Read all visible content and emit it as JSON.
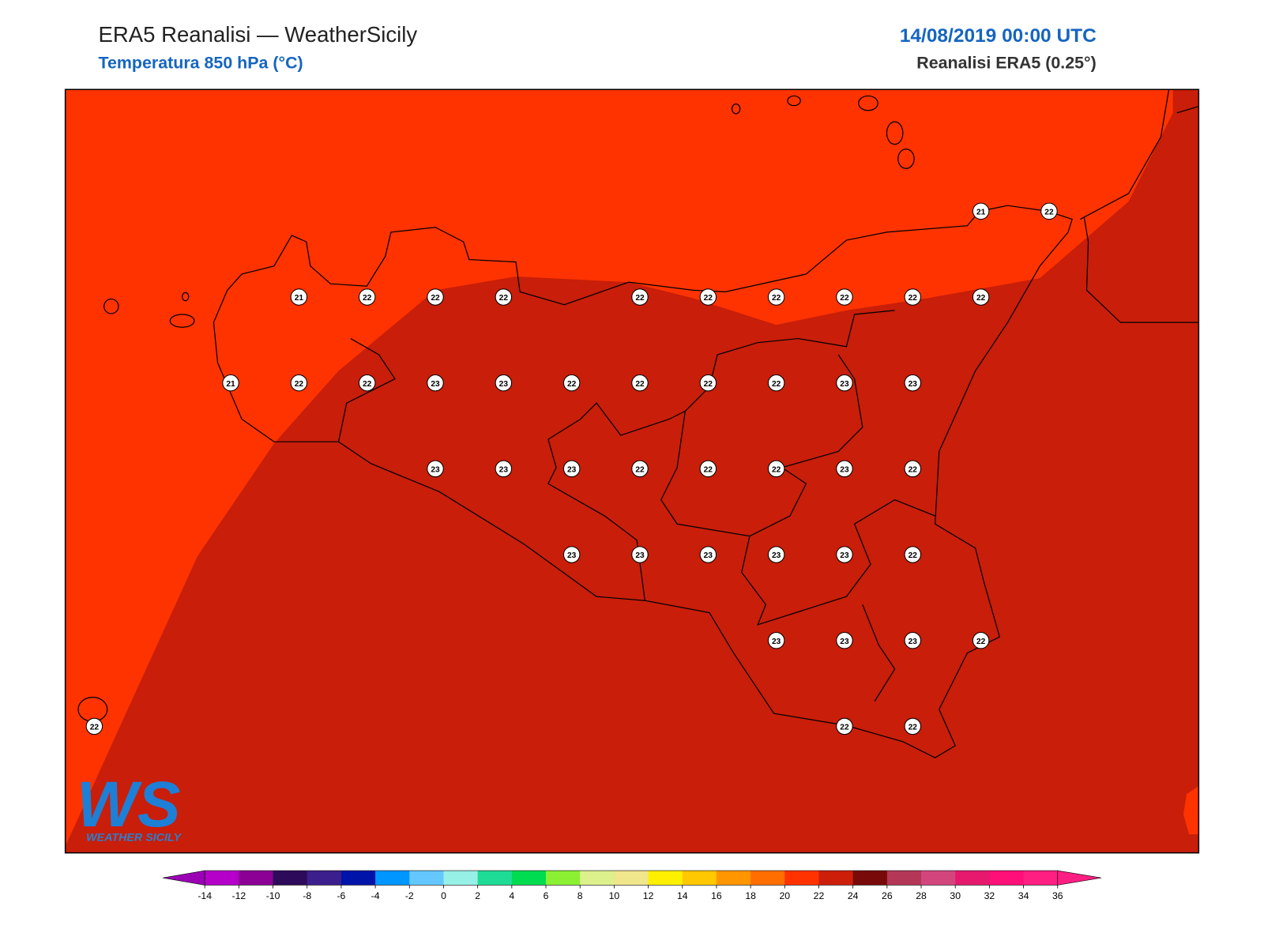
{
  "header": {
    "title": "ERA5 Reanalisi — WeatherSicily",
    "subtitle": "Temperatura 850 hPa (°C)",
    "datetime": "14/08/2019 00:00 UTC",
    "source": "Reanalisi ERA5 (0.25°)"
  },
  "stations": {
    "rows": [
      [
        null,
        null,
        null,
        null,
        null,
        null,
        null,
        null,
        null,
        null,
        null,
        null,
        null,
        21,
        22
      ],
      [
        null,
        null,
        null,
        21,
        22,
        22,
        22,
        null,
        22,
        22,
        22,
        22,
        22,
        22,
        null
      ],
      [
        null,
        null,
        21,
        22,
        22,
        23,
        23,
        22,
        22,
        22,
        22,
        23,
        23,
        null,
        null
      ],
      [
        null,
        null,
        null,
        null,
        null,
        23,
        23,
        23,
        22,
        22,
        22,
        23,
        22,
        null,
        null
      ],
      [
        null,
        null,
        null,
        null,
        null,
        null,
        null,
        23,
        23,
        23,
        23,
        23,
        22,
        null,
        null
      ],
      [
        null,
        null,
        null,
        null,
        null,
        null,
        null,
        null,
        null,
        null,
        23,
        23,
        23,
        22,
        null
      ],
      [
        22,
        null,
        null,
        null,
        null,
        null,
        null,
        null,
        null,
        null,
        null,
        22,
        22,
        null,
        null
      ]
    ]
  },
  "colorbar": {
    "ticks": [
      -14,
      -12,
      -10,
      -8,
      -6,
      -4,
      -2,
      0,
      2,
      4,
      6,
      8,
      10,
      12,
      14,
      16,
      18,
      20,
      22,
      24,
      26,
      28,
      30,
      32,
      34,
      36
    ],
    "colors": [
      "#b400c8",
      "#8c0096",
      "#2d0a5a",
      "#3c1e8c",
      "#0014aa",
      "#0096ff",
      "#64c8ff",
      "#96f0e6",
      "#1edc96",
      "#00dc50",
      "#8cf032",
      "#dcf08c",
      "#f0e68c",
      "#fff000",
      "#ffc800",
      "#ff9600",
      "#ff6e00",
      "#ff3200",
      "#cd1e0a",
      "#780a0a",
      "#b43758",
      "#d2467d",
      "#e6196e",
      "#ff0f78",
      "#ff1e82"
    ],
    "under": "#9b00b4",
    "over": "#ff1e82"
  },
  "map": {
    "low_color": "#ff3300",
    "high_color": "#c81e0a"
  },
  "logo": {
    "mark": "WS",
    "name": "WEATHER SICILY"
  }
}
